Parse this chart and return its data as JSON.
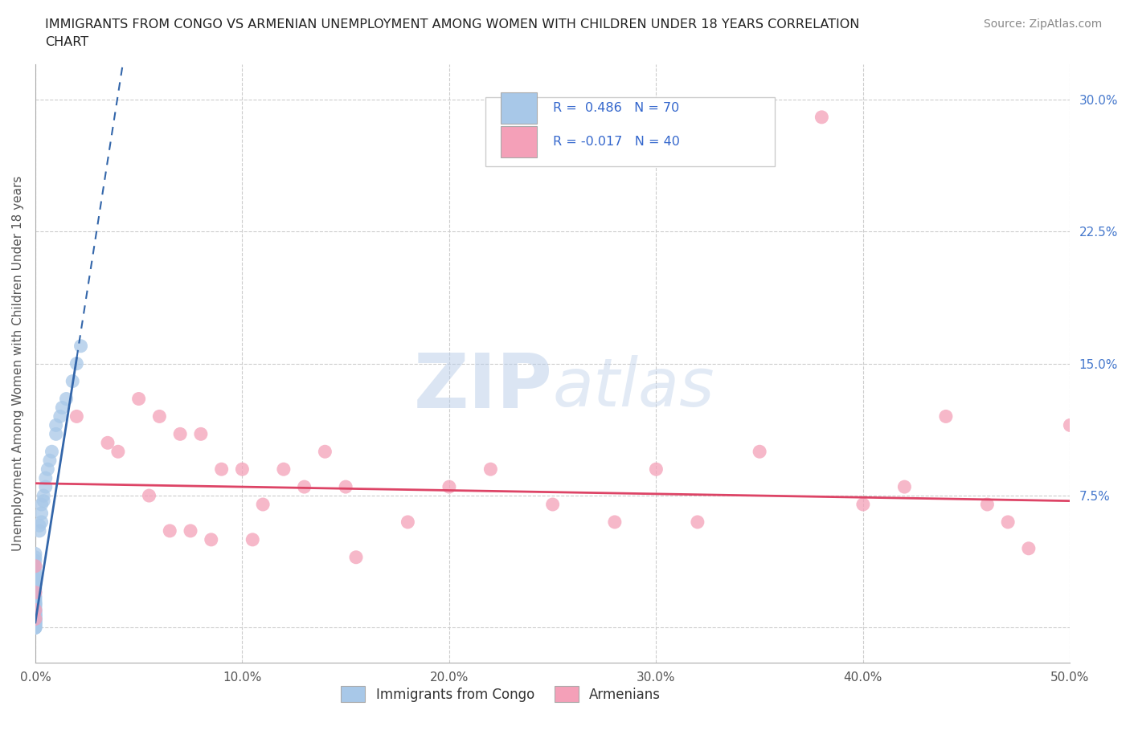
{
  "title": "IMMIGRANTS FROM CONGO VS ARMENIAN UNEMPLOYMENT AMONG WOMEN WITH CHILDREN UNDER 18 YEARS CORRELATION\nCHART",
  "source": "Source: ZipAtlas.com",
  "ylabel": "Unemployment Among Women with Children Under 18 years",
  "xlim": [
    0.0,
    0.5
  ],
  "ylim": [
    -0.02,
    0.32
  ],
  "xticks": [
    0.0,
    0.1,
    0.2,
    0.3,
    0.4,
    0.5
  ],
  "xticklabels": [
    "0.0%",
    "10.0%",
    "20.0%",
    "30.0%",
    "40.0%",
    "50.0%"
  ],
  "yticks": [
    0.0,
    0.075,
    0.15,
    0.225,
    0.3
  ],
  "yticklabels": [
    "",
    "7.5%",
    "15.0%",
    "22.5%",
    "30.0%"
  ],
  "background_color": "#ffffff",
  "grid_color": "#cccccc",
  "watermark": "ZIPatlas",
  "color_congo": "#a8c8e8",
  "color_armenian": "#f4a0b8",
  "trend_color_congo": "#3366aa",
  "trend_color_armenian": "#dd4466",
  "congo_scatter_x": [
    0.0,
    0.0,
    0.0,
    0.0,
    0.0,
    0.0,
    0.0,
    0.0,
    0.0,
    0.0,
    0.0,
    0.0,
    0.0,
    0.0,
    0.0,
    0.0,
    0.0,
    0.0,
    0.0,
    0.0,
    0.0,
    0.0,
    0.0,
    0.0,
    0.0,
    0.0,
    0.0,
    0.0,
    0.0,
    0.0,
    0.0,
    0.0,
    0.0,
    0.0,
    0.0,
    0.0,
    0.0,
    0.0,
    0.0,
    0.0,
    0.0,
    0.0,
    0.0,
    0.0,
    0.0,
    0.0,
    0.0,
    0.0,
    0.0,
    0.0,
    0.002,
    0.002,
    0.003,
    0.003,
    0.003,
    0.004,
    0.004,
    0.005,
    0.005,
    0.006,
    0.007,
    0.008,
    0.01,
    0.01,
    0.012,
    0.013,
    0.015,
    0.018,
    0.02,
    0.022
  ],
  "congo_scatter_y": [
    0.0,
    0.0,
    0.0,
    0.001,
    0.001,
    0.002,
    0.002,
    0.003,
    0.003,
    0.003,
    0.004,
    0.004,
    0.005,
    0.005,
    0.005,
    0.005,
    0.006,
    0.006,
    0.007,
    0.007,
    0.007,
    0.008,
    0.008,
    0.009,
    0.009,
    0.01,
    0.01,
    0.011,
    0.012,
    0.013,
    0.013,
    0.014,
    0.014,
    0.015,
    0.016,
    0.017,
    0.018,
    0.02,
    0.022,
    0.025,
    0.025,
    0.026,
    0.027,
    0.028,
    0.03,
    0.032,
    0.035,
    0.038,
    0.04,
    0.042,
    0.055,
    0.058,
    0.06,
    0.065,
    0.07,
    0.072,
    0.075,
    0.08,
    0.085,
    0.09,
    0.095,
    0.1,
    0.11,
    0.115,
    0.12,
    0.125,
    0.13,
    0.14,
    0.15,
    0.16
  ],
  "armenian_scatter_x": [
    0.0,
    0.0,
    0.0,
    0.0,
    0.02,
    0.035,
    0.04,
    0.05,
    0.055,
    0.06,
    0.065,
    0.07,
    0.075,
    0.08,
    0.085,
    0.09,
    0.1,
    0.105,
    0.11,
    0.12,
    0.13,
    0.14,
    0.15,
    0.155,
    0.18,
    0.2,
    0.22,
    0.25,
    0.28,
    0.3,
    0.32,
    0.35,
    0.38,
    0.4,
    0.42,
    0.44,
    0.46,
    0.47,
    0.48,
    0.5
  ],
  "armenian_scatter_y": [
    0.005,
    0.01,
    0.02,
    0.035,
    0.12,
    0.105,
    0.1,
    0.13,
    0.075,
    0.12,
    0.055,
    0.11,
    0.055,
    0.11,
    0.05,
    0.09,
    0.09,
    0.05,
    0.07,
    0.09,
    0.08,
    0.1,
    0.08,
    0.04,
    0.06,
    0.08,
    0.09,
    0.07,
    0.06,
    0.09,
    0.06,
    0.1,
    0.29,
    0.07,
    0.08,
    0.12,
    0.07,
    0.06,
    0.045,
    0.115
  ],
  "trend_slope_congo": 7.5,
  "trend_intercept_congo": 0.003,
  "trend_slope_arm": -0.02,
  "trend_intercept_arm": 0.082
}
